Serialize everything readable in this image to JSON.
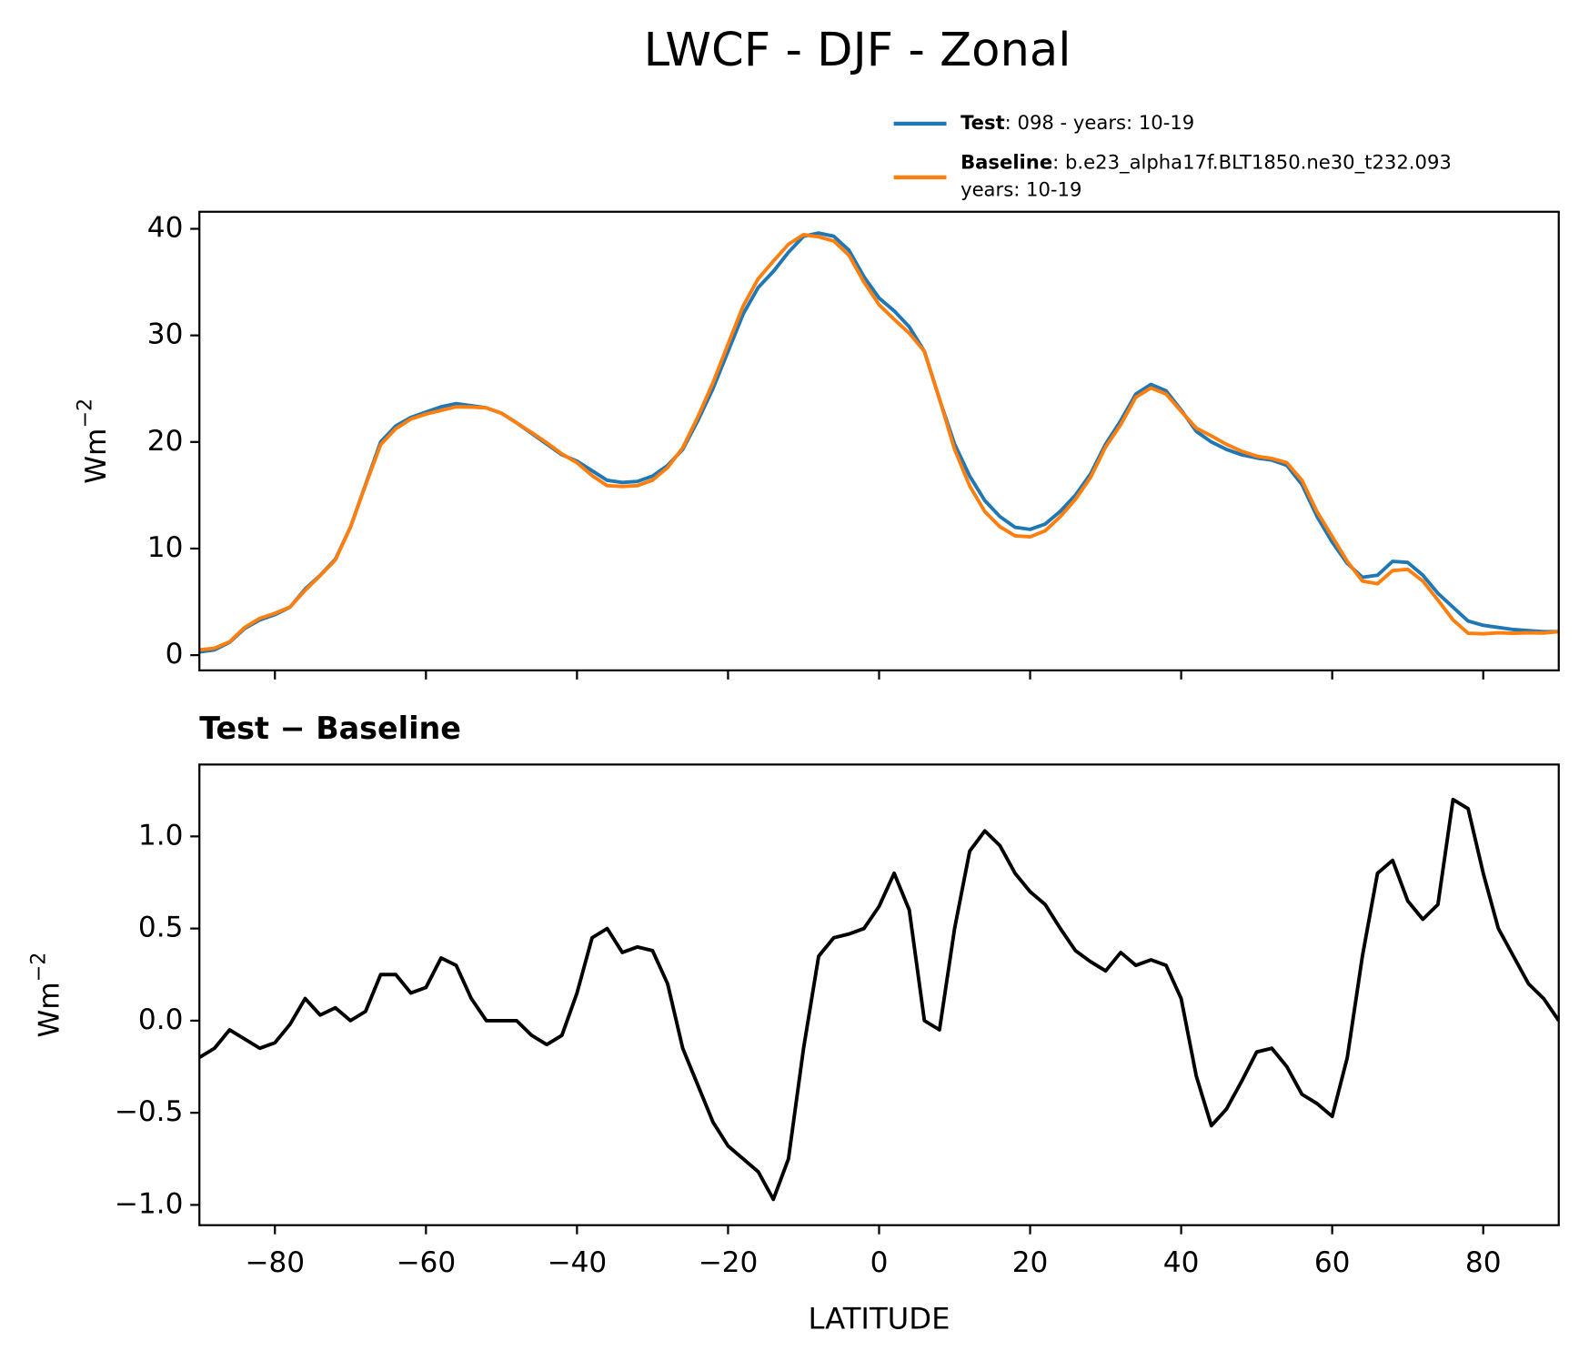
{
  "chart_data": [
    {
      "type": "line",
      "title": "LWCF - DJF - Zonal",
      "ylabel": "Wm",
      "ylabel_exponent": "−2",
      "x": [
        -90,
        -88,
        -86,
        -84,
        -82,
        -80,
        -78,
        -76,
        -74,
        -72,
        -70,
        -68,
        -66,
        -64,
        -62,
        -60,
        -58,
        -56,
        -54,
        -52,
        -50,
        -48,
        -46,
        -44,
        -42,
        -40,
        -38,
        -36,
        -34,
        -32,
        -30,
        -28,
        -26,
        -24,
        -22,
        -20,
        -18,
        -16,
        -14,
        -12,
        -10,
        -8,
        -6,
        -4,
        -2,
        0,
        2,
        4,
        6,
        8,
        10,
        12,
        14,
        16,
        18,
        20,
        22,
        24,
        26,
        28,
        30,
        32,
        34,
        36,
        38,
        40,
        42,
        44,
        46,
        48,
        50,
        52,
        54,
        56,
        58,
        60,
        62,
        64,
        66,
        68,
        70,
        72,
        74,
        76,
        78,
        80,
        82,
        84,
        86,
        88,
        90
      ],
      "series": [
        {
          "name": "Test",
          "description": [
            ": 098 - years: 10-19"
          ],
          "color": "#1f77b4",
          "values": [
            0.3,
            0.5,
            1.2,
            2.5,
            3.3,
            3.8,
            4.5,
            6.2,
            7.5,
            9,
            12,
            16,
            20,
            21.5,
            22.3,
            22.8,
            23.3,
            23.6,
            23.4,
            23.2,
            22.7,
            21.8,
            20.8,
            19.8,
            18.8,
            18.2,
            17.3,
            16.4,
            16.2,
            16.3,
            16.8,
            17.8,
            19.3,
            22,
            25,
            28.5,
            32,
            34.5,
            36,
            37.8,
            39.3,
            39.6,
            39.3,
            38,
            35.5,
            33.5,
            32.3,
            30.8,
            28.5,
            24,
            19.8,
            16.8,
            14.5,
            13,
            12,
            11.8,
            12.3,
            13.5,
            15,
            17,
            19.8,
            22,
            24.5,
            25.4,
            24.8,
            23,
            21,
            20,
            19.3,
            18.8,
            18.5,
            18.3,
            17.8,
            16,
            13,
            10.6,
            8.6,
            7.3,
            7.5,
            8.8,
            8.7,
            7.5,
            5.8,
            4.5,
            3.2,
            2.8,
            2.6,
            2.4,
            2.3,
            2.2,
            2.2
          ]
        },
        {
          "name": "Baseline",
          "description": [
            ": b.e23_alpha17f.BLT1850.ne30_t232.093",
            "years: 10-19"
          ],
          "color": "#ff7f0e",
          "values": [
            0.5,
            0.65,
            1.25,
            2.6,
            3.45,
            3.92,
            4.52,
            6.08,
            7.47,
            8.93,
            12.0,
            15.95,
            19.75,
            21.25,
            22.15,
            22.62,
            22.96,
            23.3,
            23.28,
            23.2,
            22.7,
            21.8,
            20.88,
            19.93,
            18.88,
            18.05,
            16.85,
            15.9,
            15.83,
            15.9,
            16.42,
            17.6,
            19.45,
            22.35,
            25.55,
            29.18,
            32.75,
            35.32,
            36.97,
            38.55,
            39.45,
            39.25,
            38.85,
            37.53,
            35.0,
            32.88,
            31.5,
            30.2,
            28.5,
            24.05,
            19.3,
            15.88,
            13.47,
            12.05,
            11.2,
            11.1,
            11.67,
            13.0,
            14.62,
            16.68,
            19.53,
            21.63,
            24.2,
            25.07,
            24.5,
            22.88,
            21.3,
            20.57,
            19.78,
            19.13,
            18.67,
            18.45,
            18.05,
            16.4,
            13.45,
            11.12,
            8.8,
            6.95,
            6.7,
            7.93,
            8.05,
            6.95,
            5.17,
            3.3,
            2.05,
            2.0,
            2.1,
            2.05,
            2.1,
            2.08,
            2.2
          ]
        }
      ],
      "xlim": [
        -90,
        90
      ],
      "xticks": [
        -80,
        -60,
        -40,
        -20,
        0,
        20,
        40,
        60,
        80
      ],
      "ylim": [
        -1.43,
        41.6
      ],
      "yticks": [
        0,
        10,
        20,
        30,
        40
      ]
    },
    {
      "type": "line",
      "title": "Test − Baseline",
      "ylabel": "Wm",
      "ylabel_exponent": "−2",
      "xlabel": "LATITUDE",
      "x": [
        -90,
        -88,
        -86,
        -84,
        -82,
        -80,
        -78,
        -76,
        -74,
        -72,
        -70,
        -68,
        -66,
        -64,
        -62,
        -60,
        -58,
        -56,
        -54,
        -52,
        -50,
        -48,
        -46,
        -44,
        -42,
        -40,
        -38,
        -36,
        -34,
        -32,
        -30,
        -28,
        -26,
        -24,
        -22,
        -20,
        -18,
        -16,
        -14,
        -12,
        -10,
        -8,
        -6,
        -4,
        -2,
        0,
        2,
        4,
        6,
        8,
        10,
        12,
        14,
        16,
        18,
        20,
        22,
        24,
        26,
        28,
        30,
        32,
        34,
        36,
        38,
        40,
        42,
        44,
        46,
        48,
        50,
        52,
        54,
        56,
        58,
        60,
        62,
        64,
        66,
        68,
        70,
        72,
        74,
        76,
        78,
        80,
        82,
        84,
        86,
        88,
        90
      ],
      "series": [
        {
          "color": "#000000",
          "values": [
            -0.2,
            -0.15,
            -0.05,
            -0.1,
            -0.15,
            -0.12,
            -0.02,
            0.12,
            0.03,
            0.07,
            0.0,
            0.05,
            0.25,
            0.25,
            0.15,
            0.18,
            0.34,
            0.3,
            0.12,
            0.0,
            0.0,
            0.0,
            -0.08,
            -0.13,
            -0.08,
            0.15,
            0.45,
            0.5,
            0.37,
            0.4,
            0.38,
            0.2,
            -0.15,
            -0.35,
            -0.55,
            -0.68,
            -0.75,
            -0.82,
            -0.97,
            -0.75,
            -0.15,
            0.35,
            0.45,
            0.47,
            0.5,
            0.62,
            0.8,
            0.6,
            0.0,
            -0.05,
            0.5,
            0.92,
            1.03,
            0.95,
            0.8,
            0.7,
            0.63,
            0.5,
            0.38,
            0.32,
            0.27,
            0.37,
            0.3,
            0.33,
            0.3,
            0.12,
            -0.3,
            -0.57,
            -0.48,
            -0.33,
            -0.17,
            -0.15,
            -0.25,
            -0.4,
            -0.45,
            -0.52,
            -0.2,
            0.35,
            0.8,
            0.87,
            0.65,
            0.55,
            0.63,
            1.2,
            1.15,
            0.8,
            0.5,
            0.35,
            0.2,
            0.12,
            0.0
          ]
        }
      ],
      "xlim": [
        -90,
        90
      ],
      "xticks": [
        {
          "value": -80,
          "label": "−80"
        },
        {
          "value": -60,
          "label": "−60"
        },
        {
          "value": -40,
          "label": "−40"
        },
        {
          "value": -20,
          "label": "−20"
        },
        0,
        20,
        40,
        60,
        80
      ],
      "ylim": [
        -1.11,
        1.39
      ],
      "yticks": [
        {
          "value": -1,
          "label": "−1.0"
        },
        {
          "value": -0.5,
          "label": "−0.5"
        },
        {
          "value": 0,
          "label": "0.0"
        },
        0.5,
        {
          "value": 1,
          "label": "1.0"
        }
      ]
    }
  ]
}
